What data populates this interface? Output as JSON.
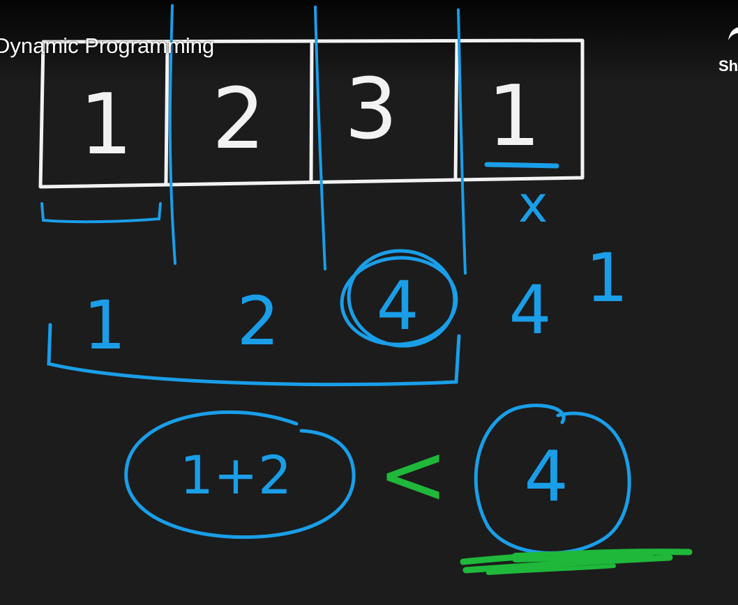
{
  "player": {
    "title": "Dynamic Programming",
    "share_label": "Sh"
  },
  "whiteboard": {
    "array_values": [
      "1",
      "2",
      "3",
      "1"
    ],
    "running_values": [
      "1",
      "2",
      "4",
      "4",
      "1"
    ],
    "comparison": {
      "left": "1+2",
      "operator": "<",
      "right": "4"
    },
    "crossed_mark": "x"
  },
  "colors": {
    "board_background": "#1c1c1c",
    "chalk_white": "#f2f2f2",
    "marker_blue": "#1a9ee8",
    "marker_green": "#1fb83a"
  }
}
